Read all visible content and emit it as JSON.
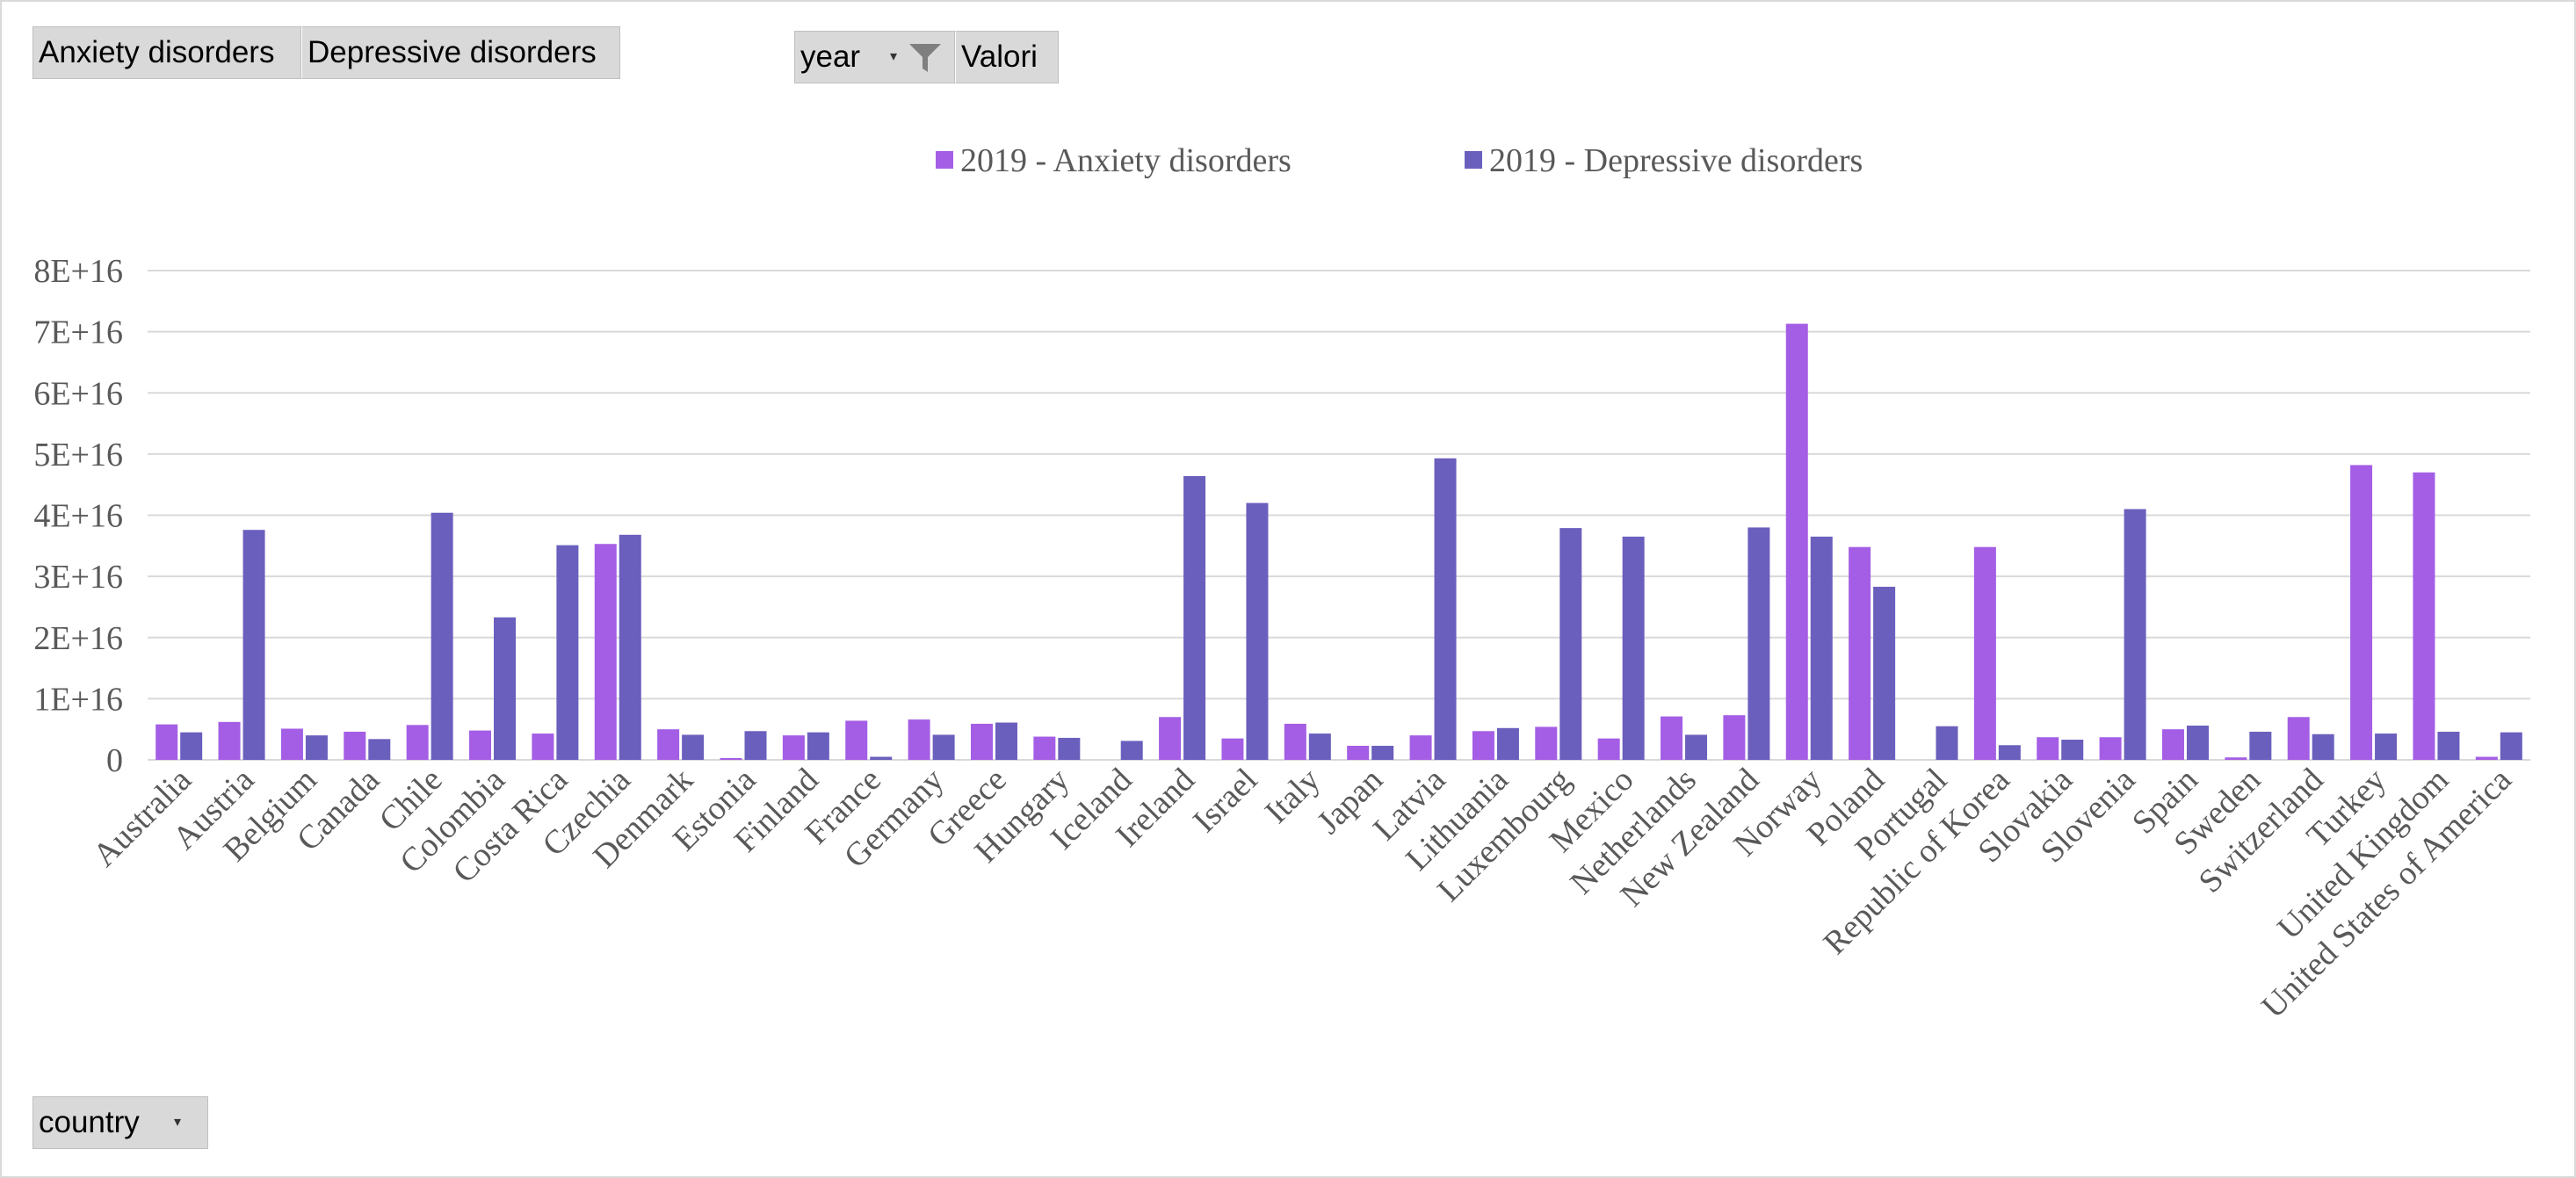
{
  "pivot": {
    "series_buttons": [
      "Anxiety disorders",
      "Depressive disorders"
    ],
    "year_label": "year",
    "valori_label": "Valori",
    "country_label": "country",
    "filter_icon": "funnel-filter-icon",
    "dropdown_icon": "chevron-down-icon"
  },
  "chart_data": {
    "type": "bar",
    "title": "",
    "xlabel": "",
    "ylabel": "",
    "ylim": [
      0,
      80000000000000000
    ],
    "yticks": [
      0,
      10000000000000000,
      20000000000000000,
      30000000000000000,
      40000000000000000,
      50000000000000000,
      60000000000000000,
      70000000000000000,
      80000000000000000
    ],
    "ytick_labels": [
      "0",
      "1E+16",
      "2E+16",
      "3E+16",
      "4E+16",
      "5E+16",
      "6E+16",
      "7E+16",
      "8E+16"
    ],
    "grid": true,
    "legend_position": "top-center",
    "categories": [
      "Australia",
      "Austria",
      "Belgium",
      "Canada",
      "Chile",
      "Colombia",
      "Costa Rica",
      "Czechia",
      "Denmark",
      "Estonia",
      "Finland",
      "France",
      "Germany",
      "Greece",
      "Hungary",
      "Iceland",
      "Ireland",
      "Israel",
      "Italy",
      "Japan",
      "Latvia",
      "Lithuania",
      "Luxembourg",
      "Mexico",
      "Netherlands",
      "New Zealand",
      "Norway",
      "Poland",
      "Portugal",
      "Republic of Korea",
      "Slovakia",
      "Slovenia",
      "Spain",
      "Sweden",
      "Switzerland",
      "Turkey",
      "United Kingdom",
      "United States of America"
    ],
    "series": [
      {
        "name": "2019 - Anxiety disorders",
        "color": "#a45ee5",
        "values": [
          5800000000000000,
          6200000000000000,
          5100000000000000,
          4600000000000000,
          5700000000000000,
          4800000000000000,
          4300000000000000,
          35300000000000000,
          5000000000000000,
          300000000000000,
          4000000000000000,
          6400000000000000,
          6600000000000000,
          5900000000000000,
          3800000000000000,
          0,
          7000000000000000,
          3500000000000000,
          5900000000000000,
          2300000000000000,
          4000000000000000,
          4700000000000000,
          5400000000000000,
          3500000000000000,
          7100000000000000,
          7300000000000000,
          71300000000000000,
          34800000000000000,
          0,
          34800000000000000,
          3700000000000000,
          3700000000000000,
          5000000000000000,
          400000000000000,
          7000000000000000,
          48200000000000000,
          47000000000000000,
          500000000000000
        ]
      },
      {
        "name": "2019 - Depressive disorders",
        "color": "#6a5fbd",
        "values": [
          4500000000000000,
          37600000000000000,
          4000000000000000,
          3400000000000000,
          40400000000000000,
          23300000000000000,
          35100000000000000,
          36800000000000000,
          4100000000000000,
          4700000000000000,
          4500000000000000,
          500000000000000,
          4100000000000000,
          6100000000000000,
          3600000000000000,
          3100000000000000,
          46400000000000000,
          42000000000000000,
          4300000000000000,
          2300000000000000,
          49300000000000000,
          5200000000000000,
          37900000000000000,
          36500000000000000,
          4100000000000000,
          38000000000000000,
          36500000000000000,
          28300000000000000,
          5500000000000000,
          2400000000000000,
          3300000000000000,
          41000000000000000,
          5600000000000000,
          4600000000000000,
          4200000000000000,
          4300000000000000,
          4600000000000000,
          4500000000000000
        ]
      }
    ],
    "gridline_color": "#d9d9d9",
    "text_color": "#595959"
  }
}
